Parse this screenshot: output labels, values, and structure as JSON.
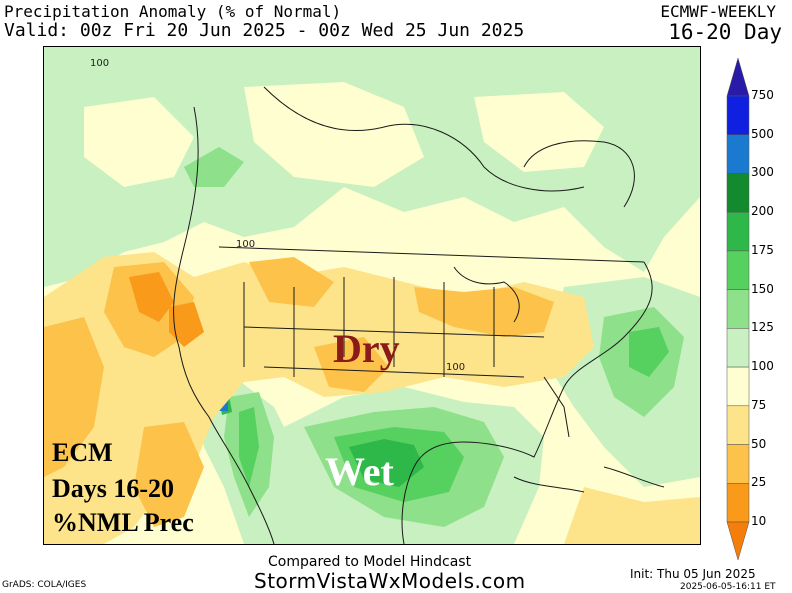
{
  "header": {
    "title": "Precipitation Anomaly (% of Normal)",
    "valid": "Valid: 00z Fri 20 Jun 2025 - 00z Wed 25 Jun 2025",
    "model": "ECMWF-WEEKLY",
    "period": "16-20 Day"
  },
  "map": {
    "label_dry": "Dry",
    "label_wet": "Wet",
    "contour_labels": [
      "100",
      "100",
      "100"
    ],
    "side_text": [
      "ECM",
      "Days 16-20",
      "%NML Prec"
    ]
  },
  "colorbar": {
    "levels": [
      "750",
      "500",
      "300",
      "200",
      "175",
      "150",
      "125",
      "100",
      "75",
      "50",
      "25",
      "10"
    ],
    "colors": [
      "#2a1aa8",
      "#1020e0",
      "#1a7ad0",
      "#148a2e",
      "#2fb84a",
      "#56d05e",
      "#8ee08a",
      "#c8f0c0",
      "#fefed0",
      "#fde48a",
      "#fcc24a",
      "#fa9a1a",
      "#f57d0a"
    ]
  },
  "footer": {
    "compared": "Compared to Model Hindcast",
    "website": "StormVistaWxModels.com",
    "grads": "GrADS: COLA/IGES",
    "init": "Init: Thu 05 Jun 2025",
    "stamp": "2025-06-05-16:11 ET"
  }
}
